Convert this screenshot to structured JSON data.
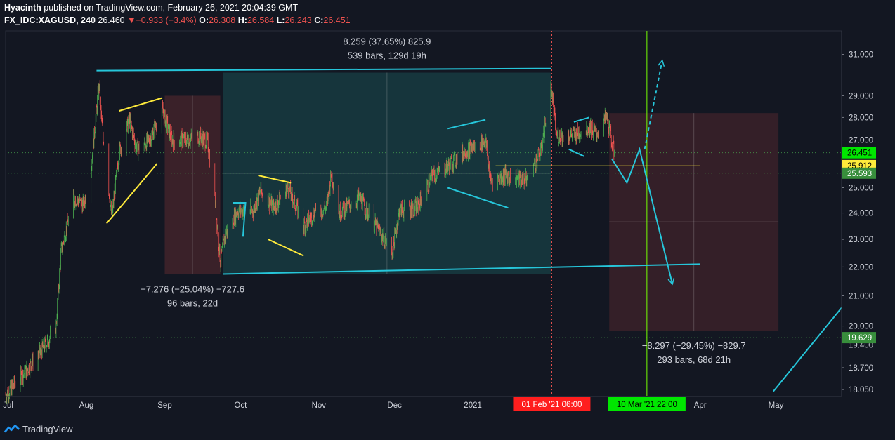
{
  "header": {
    "author": "Hyacinth",
    "published": "published on TradingView.com, February 26, 2021 20:04:39 GMT",
    "symbol": "FX_IDC:XAGUSD, 240",
    "last": "26.460",
    "change_arrow": "▼",
    "change": "−0.933 (−3.4%)",
    "open_label": "O:",
    "open": "26.308",
    "high_label": "H:",
    "high": "26.584",
    "low_label": "L:",
    "low": "26.243",
    "close_label": "C:",
    "close": "26.451"
  },
  "footer": {
    "brand": "TradingView",
    "logo_icon": "tradingview-logo-icon"
  },
  "colors": {
    "background": "#131722",
    "up": "#4caf50",
    "down": "#ef5350",
    "cyan": "#26c6da",
    "yellow": "#ffeb3b",
    "green_line": "#76ff03"
  },
  "chart_data": {
    "type": "candlestick",
    "title": "",
    "xlabel": "",
    "ylabel": "",
    "x_ticks": [
      "Jul",
      "Aug",
      "Sep",
      "Oct",
      "Nov",
      "Dec",
      "2021",
      "Feb",
      "Mar",
      "Apr",
      "May"
    ],
    "y_ticks": [
      "31.000",
      "29.000",
      "28.000",
      "27.000",
      "26.000",
      "25.000",
      "24.000",
      "23.000",
      "22.000",
      "21.000",
      "20.000",
      "19.400",
      "18.700",
      "18.050"
    ],
    "y_scale": "log",
    "ylim": [
      17.85,
      32.2
    ],
    "xlim": [
      "2020-06-30",
      "2021-05-27"
    ],
    "price_badges": [
      {
        "text": "26.451",
        "role": "last"
      },
      {
        "text": "25.912",
        "role": "level"
      },
      {
        "text": "25.593",
        "role": "level"
      },
      {
        "text": "19.629",
        "role": "level"
      }
    ],
    "date_badges": [
      {
        "text": "01 Feb '21   06:00",
        "date": "2021-02-01T06:00"
      },
      {
        "text": "10 Mar '21   22:00",
        "date": "2021-03-10T22:00"
      }
    ],
    "measurements": [
      {
        "line1": "8.259 (37.65%) 825.9",
        "line2": "539 bars, 129d 19h",
        "from": "2020-09-24",
        "to": "2021-02-01",
        "low": 21.75,
        "high": 30.1
      },
      {
        "line1": "−7.276 (−25.04%) −727.6",
        "line2": "96 bars, 22d",
        "from": "2020-09-01",
        "to": "2020-09-23",
        "high": 29.0,
        "low": 21.75
      },
      {
        "line1": "−8.297 (−29.45%) −829.7",
        "line2": "293 bars, 68d 21h",
        "from": "2021-02-24",
        "to": "2021-05-02",
        "high": 28.2,
        "low": 19.85
      }
    ],
    "trendlines": [
      {
        "color": "cyan",
        "points": [
          [
            "2020-08-05",
            30.2
          ],
          [
            "2021-02-01",
            30.3
          ]
        ]
      },
      {
        "color": "cyan",
        "points": [
          [
            "2020-09-24",
            21.75
          ],
          [
            "2021-04-01",
            22.1
          ]
        ]
      },
      {
        "color": "cyan",
        "points": [
          [
            "2021-04-30",
            18.0
          ],
          [
            "2021-05-27",
            20.6
          ]
        ]
      },
      {
        "color": "cyan",
        "points": [
          [
            "2021-02-25",
            26.2
          ],
          [
            "2021-03-03",
            25.2
          ],
          [
            "2021-03-08",
            26.6
          ],
          [
            "2021-03-21",
            21.4
          ]
        ],
        "arrow": true
      },
      {
        "color": "cyan",
        "dashed": true,
        "points": [
          [
            "2021-03-10",
            26.6
          ],
          [
            "2021-03-17",
            30.7
          ]
        ],
        "arrow": true
      },
      {
        "color": "yellow",
        "points": [
          [
            "2020-08-09",
            23.6
          ],
          [
            "2020-08-29",
            26.0
          ]
        ]
      },
      {
        "color": "yellow",
        "points": [
          [
            "2020-08-14",
            28.3
          ],
          [
            "2020-08-31",
            28.9
          ]
        ]
      },
      {
        "color": "yellow",
        "points": [
          [
            "2020-10-12",
            23.0
          ],
          [
            "2020-10-26",
            22.4
          ]
        ]
      },
      {
        "color": "yellow",
        "points": [
          [
            "2020-10-08",
            25.5
          ],
          [
            "2020-10-21",
            25.2
          ]
        ]
      },
      {
        "color": "cyan",
        "points": [
          [
            "2020-12-22",
            27.5
          ],
          [
            "2021-01-06",
            27.9
          ]
        ]
      },
      {
        "color": "cyan",
        "points": [
          [
            "2020-12-22",
            25.0
          ],
          [
            "2021-01-15",
            24.2
          ]
        ]
      },
      {
        "color": "cyan",
        "points": [
          [
            "2021-02-10",
            27.8
          ],
          [
            "2021-02-16",
            28.0
          ]
        ]
      },
      {
        "color": "cyan",
        "points": [
          [
            "2021-02-08",
            26.6
          ],
          [
            "2021-02-14",
            26.3
          ]
        ]
      },
      {
        "color": "cyan",
        "points": [
          [
            "2020-09-28",
            24.4
          ],
          [
            "2020-10-03",
            24.4
          ],
          [
            "2020-10-02",
            23.1
          ]
        ]
      },
      {
        "color": "yellow",
        "dashed": false,
        "points": [
          [
            "2021-01-10",
            25.9
          ],
          [
            "2021-04-01",
            25.9
          ]
        ]
      }
    ],
    "vertical_markers": [
      {
        "date": "2021-02-01T06:00",
        "style": "dotted",
        "color": "#ef5350"
      },
      {
        "date": "2021-03-10T22:00",
        "style": "solid",
        "color": "#76ff03"
      }
    ],
    "series_daily": [
      [
        "2020-06-30",
        17.9
      ],
      [
        "2020-07-08",
        18.6
      ],
      [
        "2020-07-15",
        19.3
      ],
      [
        "2020-07-20",
        20.0
      ],
      [
        "2020-07-22",
        22.6
      ],
      [
        "2020-07-27",
        24.6
      ],
      [
        "2020-07-31",
        24.3
      ],
      [
        "2020-08-03",
        26.0
      ],
      [
        "2020-08-06",
        29.5
      ],
      [
        "2020-08-07",
        27.8
      ],
      [
        "2020-08-11",
        23.8
      ],
      [
        "2020-08-14",
        26.5
      ],
      [
        "2020-08-18",
        27.9
      ],
      [
        "2020-08-21",
        26.6
      ],
      [
        "2020-08-26",
        27.0
      ],
      [
        "2020-08-31",
        28.3
      ],
      [
        "2020-09-04",
        27.0
      ],
      [
        "2020-09-10",
        27.0
      ],
      [
        "2020-09-15",
        27.2
      ],
      [
        "2020-09-18",
        26.9
      ],
      [
        "2020-09-21",
        24.4
      ],
      [
        "2020-09-23",
        22.2
      ],
      [
        "2020-09-25",
        23.2
      ],
      [
        "2020-09-30",
        24.1
      ],
      [
        "2020-10-06",
        24.1
      ],
      [
        "2020-10-09",
        24.9
      ],
      [
        "2020-10-14",
        24.2
      ],
      [
        "2020-10-20",
        25.0
      ],
      [
        "2020-10-26",
        23.5
      ],
      [
        "2020-10-30",
        24.0
      ],
      [
        "2020-11-04",
        24.2
      ],
      [
        "2020-11-06",
        25.6
      ],
      [
        "2020-11-09",
        24.0
      ],
      [
        "2020-11-17",
        24.6
      ],
      [
        "2020-11-23",
        23.6
      ],
      [
        "2020-11-30",
        22.5
      ],
      [
        "2020-12-03",
        24.1
      ],
      [
        "2020-12-10",
        24.2
      ],
      [
        "2020-12-16",
        25.5
      ],
      [
        "2020-12-21",
        25.8
      ],
      [
        "2020-12-29",
        26.5
      ],
      [
        "2021-01-06",
        27.0
      ],
      [
        "2021-01-08",
        25.3
      ],
      [
        "2021-01-14",
        25.5
      ],
      [
        "2021-01-22",
        25.3
      ],
      [
        "2021-01-28",
        26.5
      ],
      [
        "2021-02-01",
        29.5
      ],
      [
        "2021-02-03",
        27.2
      ],
      [
        "2021-02-08",
        27.2
      ],
      [
        "2021-02-12",
        27.3
      ],
      [
        "2021-02-16",
        27.6
      ],
      [
        "2021-02-19",
        27.3
      ],
      [
        "2021-02-23",
        28.0
      ],
      [
        "2021-02-26",
        26.45
      ]
    ]
  }
}
